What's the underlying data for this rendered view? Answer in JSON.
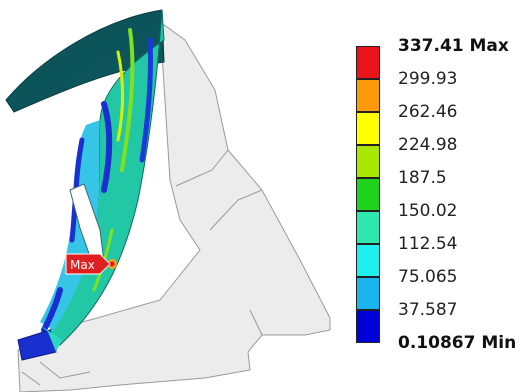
{
  "plot": {
    "probe_label": "Max"
  },
  "legend": {
    "colors": [
      "#e8141a",
      "#ff9a0a",
      "#ffff00",
      "#a8e800",
      "#1ed21e",
      "#2ee8b0",
      "#1ef0f0",
      "#1ab4f0",
      "#0000d8"
    ],
    "labels": [
      {
        "text": "337.41 Max",
        "bold": true
      },
      {
        "text": "299.93",
        "bold": false
      },
      {
        "text": "262.46",
        "bold": false
      },
      {
        "text": "224.98",
        "bold": false
      },
      {
        "text": "187.5",
        "bold": false
      },
      {
        "text": "150.02",
        "bold": false
      },
      {
        "text": "112.54",
        "bold": false
      },
      {
        "text": "75.065",
        "bold": false
      },
      {
        "text": "37.587",
        "bold": false
      },
      {
        "text": "0.10867 Min",
        "bold": true
      }
    ]
  }
}
